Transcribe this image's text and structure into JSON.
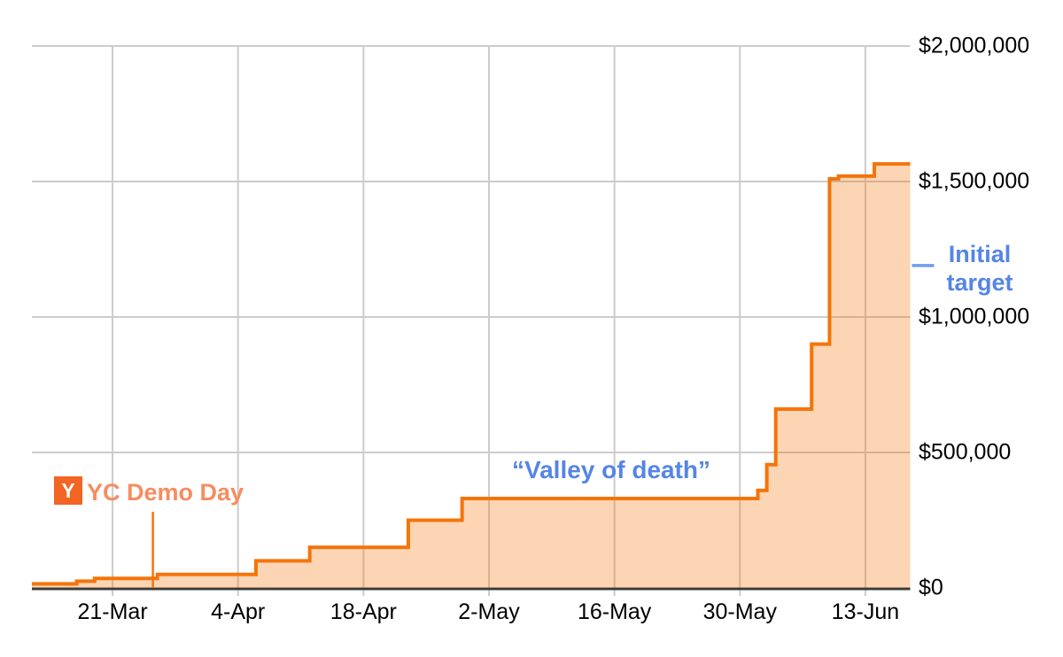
{
  "chart_data": {
    "type": "area",
    "subtype": "stepped-area-cumulative",
    "grid": true,
    "legend_position": "none",
    "xlim_days": [
      0,
      98
    ],
    "ylim": [
      0,
      2000000
    ],
    "x_ticks": [
      {
        "label": "21-Mar",
        "day": 9
      },
      {
        "label": "4-Apr",
        "day": 23
      },
      {
        "label": "18-Apr",
        "day": 37
      },
      {
        "label": "2-May",
        "day": 51
      },
      {
        "label": "16-May",
        "day": 65
      },
      {
        "label": "30-May",
        "day": 79
      },
      {
        "label": "13-Jun",
        "day": 93
      }
    ],
    "y_ticks": [
      {
        "label": "$0",
        "value": 0
      },
      {
        "label": "$500,000",
        "value": 500000
      },
      {
        "label": "$1,000,000",
        "value": 1000000
      },
      {
        "label": "$1,500,000",
        "value": 1500000
      },
      {
        "label": "$2,000,000",
        "value": 2000000
      }
    ],
    "points": [
      {
        "date": "12-Mar",
        "day": 0,
        "value": 15000
      },
      {
        "date": "17-Mar",
        "day": 5,
        "value": 25000
      },
      {
        "date": "19-Mar",
        "day": 7,
        "value": 35000
      },
      {
        "date": "26-Mar",
        "day": 14,
        "value": 50000
      },
      {
        "date": "6-Apr",
        "day": 25,
        "value": 100000
      },
      {
        "date": "12-Apr",
        "day": 31,
        "value": 150000
      },
      {
        "date": "23-Apr",
        "day": 42,
        "value": 250000
      },
      {
        "date": "29-Apr",
        "day": 48,
        "value": 330000
      },
      {
        "date": "1-Jun",
        "day": 81,
        "value": 360000
      },
      {
        "date": "2-Jun",
        "day": 82,
        "value": 455000
      },
      {
        "date": "3-Jun",
        "day": 83,
        "value": 660000
      },
      {
        "date": "7-Jun",
        "day": 87,
        "value": 900000
      },
      {
        "date": "9-Jun",
        "day": 89,
        "value": 1510000
      },
      {
        "date": "10-Jun",
        "day": 90,
        "value": 1520000
      },
      {
        "date": "14-Jun",
        "day": 94,
        "value": 1565000
      }
    ],
    "end_day": 98,
    "annotations": {
      "yc_demo_day": {
        "label": "YC Demo Day",
        "logo_letter": "Y",
        "day": 13.5,
        "date": "26-Mar"
      },
      "valley_of_death": {
        "label": "“Valley of death”"
      },
      "initial_target": {
        "label": "Initial target",
        "lines": [
          "Initial",
          "target"
        ],
        "marker_value": 1190000
      }
    },
    "colors": {
      "line": "#f5740a",
      "fill": "#f5740a",
      "fill_opacity": 0.3,
      "yc_logo_bg": "#f26522",
      "yc_label_text": "#f78c5e",
      "annotation_blue": "#5585e6",
      "target_dash": "#6d9eeb",
      "gridline": "#cccccc",
      "axis": "#3a3a3a",
      "axis_text": "#000000"
    }
  }
}
